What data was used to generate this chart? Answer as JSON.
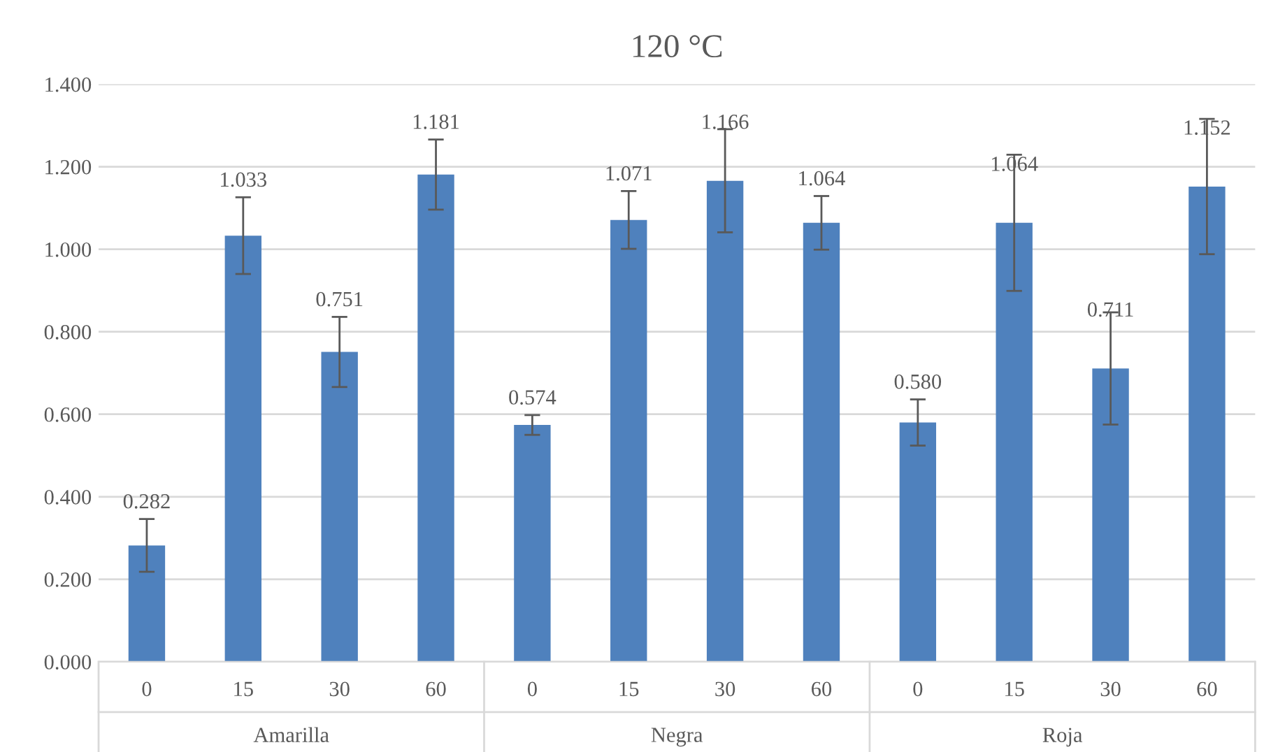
{
  "chart_data": {
    "type": "bar",
    "title": "120 °C",
    "categories": [
      "0",
      "15",
      "30",
      "60",
      "0",
      "15",
      "30",
      "60",
      "0",
      "15",
      "30",
      "60"
    ],
    "values": [
      0.282,
      1.033,
      0.751,
      1.181,
      0.574,
      1.071,
      1.166,
      1.064,
      0.58,
      1.064,
      0.711,
      1.152
    ],
    "value_labels": [
      "0.282",
      "1.033",
      "0.751",
      "1.181",
      "0.574",
      "1.071",
      "1.166",
      "1.064",
      "0.580",
      "1.064",
      "0.711",
      "1.152"
    ],
    "errors": [
      0.064,
      0.093,
      0.085,
      0.085,
      0.024,
      0.07,
      0.125,
      0.065,
      0.056,
      0.165,
      0.136,
      0.164
    ],
    "color": "#4f81bd",
    "annotations": [
      "Amarilla",
      "Negra",
      "Roja"
    ],
    "ylim": [
      0,
      1.4
    ],
    "yticks": [
      {
        "value": 0,
        "label": "0.000"
      },
      {
        "value": 0.2,
        "label": "0.200"
      },
      {
        "value": 0.4,
        "label": "0.400"
      },
      {
        "value": 0.6,
        "label": "0.600"
      },
      {
        "value": 0.8,
        "label": "0.800"
      },
      {
        "value": 1.0,
        "label": "1.000"
      },
      {
        "value": 1.2,
        "label": "1.200"
      },
      {
        "value": 1.4,
        "label": "1.400"
      }
    ],
    "grid": "y"
  }
}
